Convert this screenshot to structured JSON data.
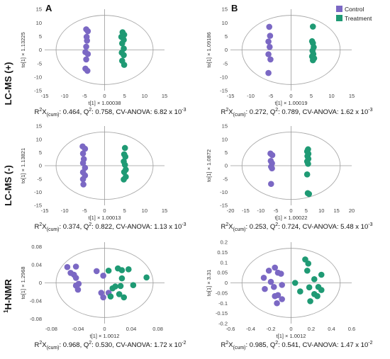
{
  "colors": {
    "control": "#7b68c4",
    "treatment": "#1f9a74",
    "ellipse": "#aaaaaa",
    "axis": "#9a9a9a"
  },
  "legend": {
    "items": [
      {
        "label": "Control",
        "color": "#7b68c4"
      },
      {
        "label": "Treatment",
        "color": "#1f9a74"
      }
    ]
  },
  "columns": [
    "A",
    "B"
  ],
  "rows": [
    {
      "label": "LC-MS (+)"
    },
    {
      "label": "LC-MS (-)"
    },
    {
      "label": "H-NMR",
      "sup": "1"
    }
  ],
  "chart_data": [
    {
      "type": "scatter",
      "panel": "A1",
      "xlabel": "t[1] × 1.00038",
      "ylabel": "to[1] × 1.13225",
      "xlim": [
        -15,
        15
      ],
      "ylim": [
        -15,
        15
      ],
      "xticks": [
        "-15",
        "-10",
        "-5",
        "0",
        "5",
        "10",
        "15"
      ],
      "yticks": [
        "15",
        "10",
        "5",
        "0",
        "-5",
        "-10",
        "-15"
      ],
      "xtick_vals": [
        -15,
        -10,
        -5,
        0,
        5,
        10,
        15
      ],
      "ytick_vals": [
        15,
        10,
        5,
        0,
        -5,
        -10,
        -15
      ],
      "series": [
        {
          "name": "Control",
          "points": [
            [
              -4.6,
              7.6
            ],
            [
              -4.2,
              6.9
            ],
            [
              -4.5,
              4.8
            ],
            [
              -4.4,
              3.4
            ],
            [
              -4.6,
              1.2
            ],
            [
              -4.8,
              -0.8
            ],
            [
              -4.2,
              -1.5
            ],
            [
              -4.6,
              -3.5
            ],
            [
              -4.8,
              -6.9
            ],
            [
              -4.3,
              -7.7
            ]
          ]
        },
        {
          "name": "Treatment",
          "points": [
            [
              4.5,
              6.5
            ],
            [
              4.9,
              5.6
            ],
            [
              4.2,
              4.8
            ],
            [
              4.8,
              3.7
            ],
            [
              4.4,
              2.4
            ],
            [
              4.8,
              0.5
            ],
            [
              4.3,
              -1
            ],
            [
              4.8,
              -1.9
            ],
            [
              4.4,
              -4
            ],
            [
              4.9,
              -5.5
            ]
          ]
        }
      ],
      "stats": {
        "r2x": "0.464",
        "q2": "0.758",
        "cv": "6.82 x 10",
        "exp": "-3"
      }
    },
    {
      "type": "scatter",
      "panel": "B1",
      "xlabel": "t[1] × 1.00019",
      "ylabel": "to[1] × 1.09186",
      "xlim": [
        -15,
        15
      ],
      "ylim": [
        -15,
        15
      ],
      "xticks": [
        "-15",
        "-10",
        "-5",
        "0",
        "5",
        "10",
        "15"
      ],
      "yticks": [
        "15",
        "10",
        "5",
        "0",
        "-5",
        "-10",
        "-15"
      ],
      "xtick_vals": [
        -15,
        -10,
        -5,
        0,
        5,
        10,
        15
      ],
      "ytick_vals": [
        15,
        10,
        5,
        0,
        -5,
        -10,
        -15
      ],
      "series": [
        {
          "name": "Control",
          "points": [
            [
              -5.4,
              8.5
            ],
            [
              -5.2,
              5.2
            ],
            [
              -5.6,
              3.1
            ],
            [
              -5.3,
              1.1
            ],
            [
              -5.6,
              -1.6
            ],
            [
              -5.1,
              -3.5
            ],
            [
              -5.6,
              -8.5
            ]
          ]
        },
        {
          "name": "Treatment",
          "points": [
            [
              5.4,
              8.6
            ],
            [
              5.2,
              3.2
            ],
            [
              5.4,
              2.5
            ],
            [
              5.6,
              1
            ],
            [
              5.3,
              -0.3
            ],
            [
              5.5,
              -1.5
            ],
            [
              5.2,
              -2.4
            ],
            [
              5.7,
              -3.1
            ],
            [
              5.4,
              -3.8
            ]
          ]
        }
      ],
      "stats": {
        "r2x": "0.272",
        "q2": "0.789",
        "cv": "1.62 x 10",
        "exp": "-3"
      }
    },
    {
      "type": "scatter",
      "panel": "A2",
      "xlabel": "t[1] × 1.00013",
      "ylabel": "to[1] × 1.13821",
      "xlim": [
        -15,
        15
      ],
      "ylim": [
        -15,
        15
      ],
      "xticks": [
        "-15",
        "-10",
        "-5",
        "0",
        "5",
        "10",
        "15"
      ],
      "yticks": [
        "15",
        "10",
        "5",
        "0",
        "-5",
        "-10",
        "-15"
      ],
      "xtick_vals": [
        -15,
        -10,
        -5,
        0,
        5,
        10,
        15
      ],
      "ytick_vals": [
        15,
        10,
        5,
        0,
        -5,
        -10,
        -15
      ],
      "series": [
        {
          "name": "Control",
          "points": [
            [
              -5.5,
              7.3
            ],
            [
              -4.9,
              6.4
            ],
            [
              -5.4,
              4.6
            ],
            [
              -5.2,
              2.5
            ],
            [
              -5.4,
              1
            ],
            [
              -4.9,
              -0.8
            ],
            [
              -5.4,
              -2.5
            ],
            [
              -4.9,
              -3.7
            ],
            [
              -5.4,
              -5.1
            ],
            [
              -5.3,
              -7.1
            ]
          ]
        },
        {
          "name": "Treatment",
          "points": [
            [
              5.1,
              6.7
            ],
            [
              4.9,
              4.3
            ],
            [
              5.2,
              3.4
            ],
            [
              4.8,
              1.6
            ],
            [
              5.1,
              0.3
            ],
            [
              5.3,
              -1.5
            ],
            [
              4.9,
              -2.4
            ],
            [
              5.3,
              -4.2
            ],
            [
              4.8,
              -5.2
            ]
          ]
        }
      ],
      "stats": {
        "r2x": "0.374",
        "q2": "0.822",
        "cv": "1.13 x 10",
        "exp": "-3"
      }
    },
    {
      "type": "scatter",
      "panel": "B2",
      "xlabel": "t[1] × 1.00022",
      "ylabel": "to[1] × 1.0872",
      "xlim": [
        -20,
        20
      ],
      "ylim": [
        -15,
        15
      ],
      "xticks": [
        "-20",
        "-15",
        "-10",
        "-5",
        "0",
        "5",
        "10",
        "15",
        "20"
      ],
      "yticks": [
        "15",
        "10",
        "5",
        "0",
        "-5",
        "-10",
        "-15"
      ],
      "xtick_vals": [
        -20,
        -15,
        -10,
        -5,
        0,
        5,
        10,
        15,
        20
      ],
      "ytick_vals": [
        15,
        10,
        5,
        0,
        -5,
        -10,
        -15
      ],
      "series": [
        {
          "name": "Control",
          "points": [
            [
              -6.8,
              4.6
            ],
            [
              -6.2,
              4
            ],
            [
              -6.7,
              1.8
            ],
            [
              -6.3,
              0.9
            ],
            [
              -6.6,
              -0.4
            ],
            [
              -6.3,
              -1
            ],
            [
              -6.6,
              -6.9
            ]
          ]
        },
        {
          "name": "Treatment",
          "points": [
            [
              5.6,
              6.2
            ],
            [
              5.3,
              5.4
            ],
            [
              5.7,
              4.5
            ],
            [
              5.4,
              3.6
            ],
            [
              5.7,
              2.6
            ],
            [
              5.3,
              1.6
            ],
            [
              5.6,
              0.7
            ],
            [
              5.3,
              -3.3
            ],
            [
              5.5,
              -10.4
            ],
            [
              5.9,
              -10.7
            ]
          ]
        }
      ],
      "stats": {
        "r2x": "0.253",
        "q2": "0.724",
        "cv": "5.48 x 10",
        "exp": "-3"
      }
    },
    {
      "type": "scatter",
      "panel": "A3",
      "xlabel": "t[1] × 1.0012",
      "ylabel": "to[1] × 1.2968",
      "xlim": [
        -0.09,
        0.09
      ],
      "ylim": [
        -0.09,
        0.09
      ],
      "xticks": [
        "-0.08",
        "-0.04",
        "0",
        "0.04",
        "0.08"
      ],
      "yticks": [
        "0.08",
        "0.04",
        "0",
        "-0.04",
        "-0.08"
      ],
      "xtick_vals": [
        -0.08,
        -0.04,
        0,
        0.04,
        0.08
      ],
      "ytick_vals": [
        0.08,
        0.04,
        0,
        -0.04,
        -0.08
      ],
      "series": [
        {
          "name": "Control",
          "points": [
            [
              -0.056,
              0.035
            ],
            [
              -0.043,
              0.036
            ],
            [
              -0.046,
              0.018
            ],
            [
              -0.051,
              0.022
            ],
            [
              -0.043,
              0.011
            ],
            [
              -0.039,
              -0.002
            ],
            [
              -0.043,
              -0.006
            ],
            [
              -0.04,
              -0.015
            ],
            [
              -0.012,
              0.026
            ],
            [
              -0.002,
              0.016
            ],
            [
              -0.005,
              -0.022
            ],
            [
              -0.002,
              -0.032
            ],
            [
              0.006,
              -0.022
            ]
          ]
        },
        {
          "name": "Treatment",
          "points": [
            [
              0.006,
              0.027
            ],
            [
              0.02,
              0.032
            ],
            [
              0.026,
              0.028
            ],
            [
              0.036,
              0.03
            ],
            [
              0.063,
              0.012
            ],
            [
              0.026,
              0.01
            ],
            [
              0.024,
              -0.007
            ],
            [
              0.043,
              -0.005
            ],
            [
              0.012,
              -0.012
            ],
            [
              0.016,
              -0.008
            ],
            [
              0.022,
              -0.025
            ],
            [
              0.009,
              -0.03
            ],
            [
              0.029,
              -0.032
            ]
          ]
        }
      ],
      "stats": {
        "r2x": "0.968",
        "q2": "0.530",
        "cv": "1.72 x 10",
        "exp": "-2"
      }
    },
    {
      "type": "scatter",
      "panel": "B3",
      "xlabel": "t[1] × 1.0012",
      "ylabel": "to[1] × 3.31",
      "xlim": [
        -0.6,
        0.6
      ],
      "ylim": [
        -0.2,
        0.2
      ],
      "xticks": [
        "-0.6",
        "-0.4",
        "-0.2",
        "0",
        "0.2",
        "0.4",
        "0.6"
      ],
      "yticks": [
        "0.2",
        "0.15",
        "0.1",
        "0.05",
        "0",
        "-0.05",
        "-0.1",
        "-0.15",
        "-0.2"
      ],
      "xtick_vals": [
        -0.6,
        -0.4,
        -0.2,
        0,
        0.2,
        0.4,
        0.6
      ],
      "ytick_vals": [
        0.2,
        0.15,
        0.1,
        0.05,
        0,
        -0.05,
        -0.1,
        -0.15,
        -0.2
      ],
      "series": [
        {
          "name": "Control",
          "points": [
            [
              -0.16,
              0.075
            ],
            [
              -0.22,
              0.06
            ],
            [
              -0.13,
              0.05
            ],
            [
              -0.1,
              0.045
            ],
            [
              -0.27,
              0.025
            ],
            [
              -0.2,
              0.005
            ],
            [
              -0.17,
              -0.02
            ],
            [
              -0.09,
              -0.01
            ],
            [
              -0.26,
              -0.03
            ],
            [
              -0.13,
              -0.06
            ],
            [
              -0.16,
              -0.065
            ],
            [
              -0.09,
              -0.08
            ],
            [
              -0.14,
              -0.1
            ]
          ]
        },
        {
          "name": "Treatment",
          "points": [
            [
              0.14,
              0.115
            ],
            [
              0.17,
              0.095
            ],
            [
              0.16,
              0.06
            ],
            [
              0.3,
              0.04
            ],
            [
              0.23,
              0.018
            ],
            [
              0.04,
              0.0
            ],
            [
              0.27,
              -0.02
            ],
            [
              0.18,
              -0.022
            ],
            [
              0.3,
              -0.035
            ],
            [
              0.09,
              -0.042
            ],
            [
              0.23,
              -0.055
            ],
            [
              0.26,
              -0.065
            ],
            [
              0.19,
              -0.09
            ]
          ]
        }
      ],
      "stats": {
        "r2x": "0.985",
        "q2": "0.541",
        "cv": "1.47 x 10",
        "exp": "-2"
      }
    }
  ]
}
